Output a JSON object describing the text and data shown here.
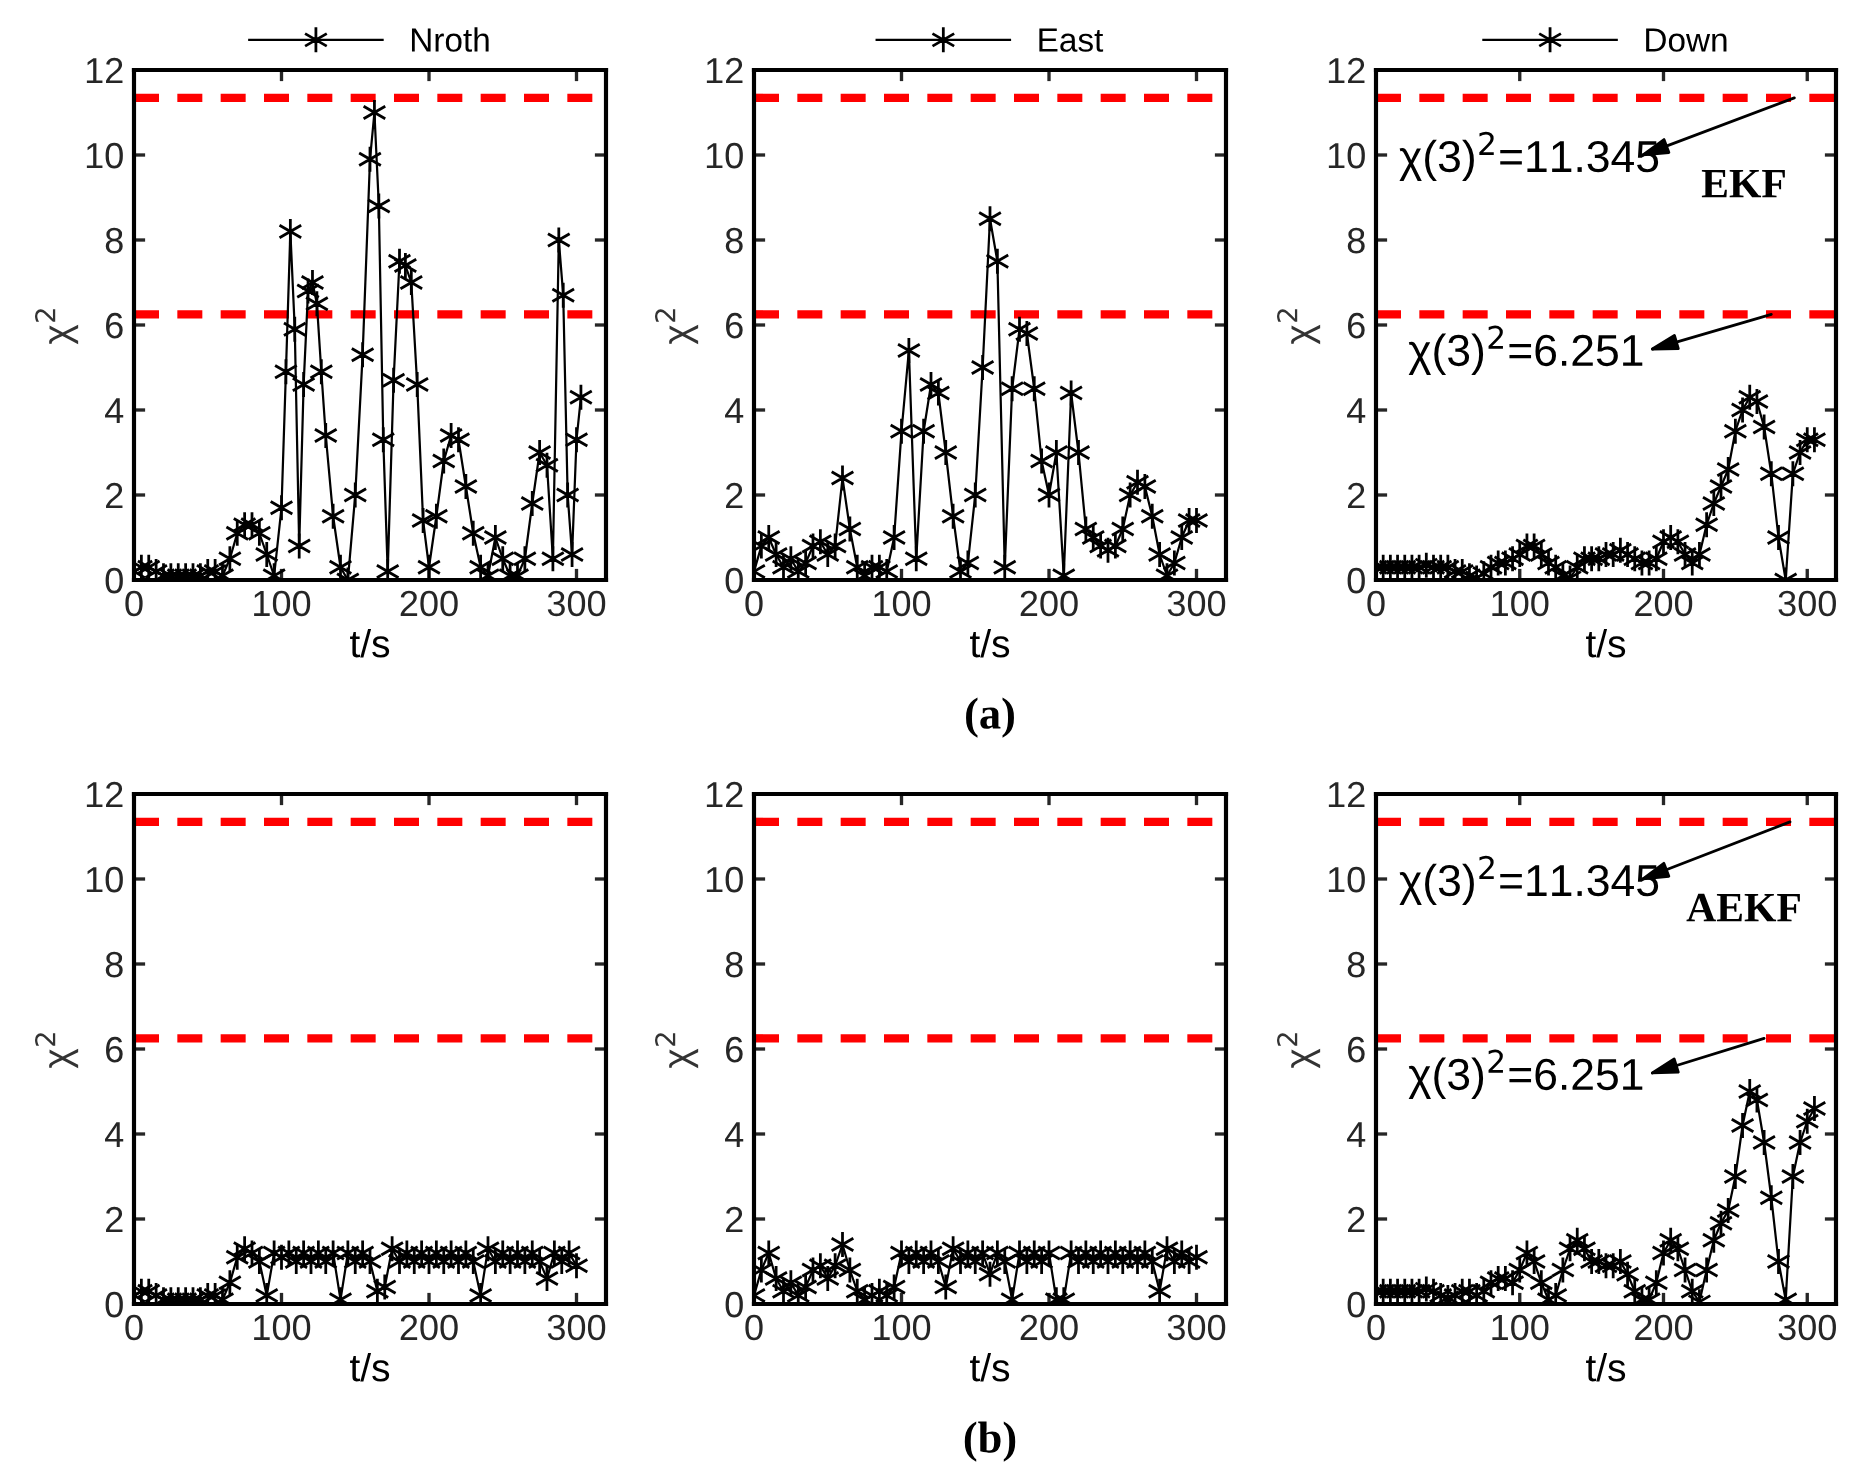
{
  "chart_data": [
    {
      "type": "line",
      "xlabel": "t/s",
      "ylabel": "χ$^{2}$",
      "xlim": [
        0,
        320
      ],
      "xticks": [
        0,
        100,
        200,
        300
      ],
      "ylim": [
        0,
        12
      ],
      "yticks": [
        0,
        2,
        4,
        6,
        8,
        10,
        12
      ],
      "marker": "cross",
      "line_style": "solid",
      "legend": "top",
      "ref_lines": [
        {
          "axis": "y",
          "value": 11.345,
          "color": "#ff0000",
          "line_style": "dashed"
        },
        {
          "axis": "y",
          "value": 6.251,
          "color": "#ff0000",
          "line_style": "dashed"
        }
      ],
      "series": [
        {
          "name": "Nroth",
          "color": "#000000",
          "x": [
            0,
            5,
            10,
            15,
            20,
            25,
            30,
            35,
            40,
            45,
            50,
            55,
            60,
            65,
            70,
            75,
            80,
            85,
            90,
            95,
            100,
            103,
            106,
            109,
            112,
            115,
            118,
            121,
            124,
            127,
            130,
            135,
            140,
            145,
            150,
            155,
            160,
            163,
            166,
            169,
            172,
            176,
            180,
            184,
            188,
            192,
            196,
            200,
            205,
            210,
            215,
            220,
            225,
            230,
            235,
            240,
            245,
            250,
            255,
            260,
            265,
            270,
            275,
            280,
            284,
            288,
            291,
            294,
            297,
            300,
            303
          ],
          "values": [
            0.2,
            0.3,
            0.3,
            0.2,
            0.1,
            0.1,
            0.1,
            0.1,
            0.1,
            0.1,
            0.2,
            0.2,
            0.1,
            0.5,
            1.1,
            1.3,
            1.3,
            1.1,
            0.6,
            0.1,
            1.7,
            4.9,
            8.2,
            5.9,
            0.8,
            4.6,
            6.8,
            7.0,
            6.5,
            4.9,
            3.4,
            1.5,
            0.3,
            0,
            2.0,
            5.3,
            9.9,
            11.0,
            8.8,
            3.3,
            0.2,
            4.7,
            7.5,
            7.4,
            7.0,
            4.6,
            1.4,
            0.3,
            1.5,
            2.8,
            3.4,
            3.3,
            2.2,
            1.1,
            0.3,
            0.1,
            1.0,
            0.5,
            0.1,
            0.1,
            0.5,
            1.8,
            3.0,
            2.7,
            0.5,
            8.0,
            6.7,
            2.0,
            0.6,
            3.3,
            4.3
          ]
        }
      ]
    },
    {
      "type": "line",
      "xlabel": "t/s",
      "ylabel": "χ$^{2}$",
      "xlim": [
        0,
        320
      ],
      "xticks": [
        0,
        100,
        200,
        300
      ],
      "ylim": [
        0,
        12
      ],
      "yticks": [
        0,
        2,
        4,
        6,
        8,
        10,
        12
      ],
      "marker": "cross",
      "line_style": "solid",
      "legend": "top",
      "ref_lines": [
        {
          "axis": "y",
          "value": 11.345,
          "color": "#ff0000",
          "line_style": "dashed"
        },
        {
          "axis": "y",
          "value": 6.251,
          "color": "#ff0000",
          "line_style": "dashed"
        }
      ],
      "annotations": [
        "(a)"
      ],
      "series": [
        {
          "name": "East",
          "color": "#000000",
          "x": [
            0,
            5,
            10,
            15,
            20,
            25,
            30,
            35,
            40,
            45,
            50,
            55,
            60,
            65,
            70,
            75,
            80,
            85,
            90,
            95,
            100,
            105,
            110,
            115,
            120,
            125,
            130,
            135,
            140,
            145,
            150,
            155,
            160,
            165,
            170,
            175,
            180,
            185,
            190,
            195,
            200,
            205,
            210,
            215,
            220,
            225,
            230,
            235,
            240,
            245,
            250,
            255,
            260,
            265,
            270,
            275,
            280,
            285,
            290,
            295,
            300
          ],
          "values": [
            0.2,
            0.8,
            1.0,
            0.6,
            0.3,
            0.5,
            0.2,
            0.4,
            0.8,
            0.9,
            0.6,
            0.8,
            2.4,
            1.2,
            0.3,
            0.1,
            0.3,
            0.3,
            0.2,
            1.0,
            3.5,
            5.4,
            0.5,
            3.5,
            4.6,
            4.4,
            3.0,
            1.5,
            0.2,
            0.4,
            2.0,
            5.0,
            8.5,
            7.5,
            0.3,
            4.5,
            5.9,
            5.8,
            4.5,
            2.8,
            2.0,
            3.0,
            0.1,
            4.4,
            3.0,
            1.2,
            1.0,
            0.8,
            0.7,
            0.8,
            1.2,
            2.0,
            2.3,
            2.2,
            1.5,
            0.6,
            0.1,
            0.4,
            1.0,
            1.4,
            1.4
          ]
        }
      ]
    },
    {
      "type": "line",
      "xlabel": "t/s",
      "ylabel": "χ$^{2}$",
      "xlim": [
        0,
        320
      ],
      "xticks": [
        0,
        100,
        200,
        300
      ],
      "ylim": [
        0,
        12
      ],
      "yticks": [
        0,
        2,
        4,
        6,
        8,
        10,
        12
      ],
      "marker": "cross",
      "line_style": "solid",
      "legend": "top",
      "ref_lines": [
        {
          "axis": "y",
          "value": 11.345,
          "color": "#ff0000",
          "line_style": "dashed"
        },
        {
          "axis": "y",
          "value": 6.251,
          "color": "#ff0000",
          "line_style": "dashed"
        }
      ],
      "annotations": [
        {
          "text": "χ(3)$^{2}$=11.345",
          "x": 291,
          "y": 11.345
        },
        {
          "text": "χ(3)$^{2}$=6.251",
          "x": 275,
          "y": 6.251
        },
        "EKF"
      ],
      "series": [
        {
          "name": "Down",
          "color": "#000000",
          "x": [
            0,
            5,
            10,
            15,
            20,
            25,
            30,
            35,
            40,
            45,
            50,
            55,
            60,
            65,
            70,
            75,
            80,
            85,
            90,
            95,
            100,
            105,
            110,
            115,
            120,
            125,
            130,
            135,
            140,
            145,
            150,
            155,
            160,
            165,
            170,
            175,
            180,
            185,
            190,
            195,
            200,
            205,
            210,
            215,
            220,
            225,
            230,
            235,
            240,
            245,
            250,
            255,
            260,
            265,
            270,
            275,
            280,
            285,
            290,
            295,
            300,
            305
          ],
          "values": [
            0.3,
            0.3,
            0.3,
            0.3,
            0.3,
            0.3,
            0.3,
            0.35,
            0.3,
            0.3,
            0.3,
            0.2,
            0.2,
            0.1,
            0.05,
            0.15,
            0.3,
            0.4,
            0.4,
            0.5,
            0.6,
            0.8,
            0.8,
            0.6,
            0.4,
            0.3,
            0.1,
            0.05,
            0.3,
            0.5,
            0.5,
            0.5,
            0.6,
            0.6,
            0.7,
            0.6,
            0.5,
            0.4,
            0.4,
            0.5,
            0.9,
            1.0,
            0.9,
            0.6,
            0.4,
            0.6,
            1.3,
            1.8,
            2.2,
            2.6,
            3.5,
            4.0,
            4.3,
            4.2,
            3.6,
            2.5,
            1.0,
            0.0,
            2.5,
            3.0,
            3.3,
            3.3
          ]
        }
      ]
    },
    {
      "type": "line",
      "xlabel": "t/s",
      "ylabel": "χ$^{2}$",
      "xlim": [
        0,
        320
      ],
      "xticks": [
        0,
        100,
        200,
        300
      ],
      "ylim": [
        0,
        12
      ],
      "yticks": [
        0,
        2,
        4,
        6,
        8,
        10,
        12
      ],
      "marker": "cross",
      "line_style": "solid",
      "ref_lines": [
        {
          "axis": "y",
          "value": 11.345,
          "color": "#ff0000",
          "line_style": "dashed"
        },
        {
          "axis": "y",
          "value": 6.251,
          "color": "#ff0000",
          "line_style": "dashed"
        }
      ],
      "series": [
        {
          "color": "#000000",
          "x": [
            0,
            5,
            10,
            15,
            20,
            25,
            30,
            35,
            40,
            45,
            50,
            55,
            60,
            65,
            70,
            75,
            80,
            85,
            90,
            95,
            100,
            105,
            110,
            115,
            120,
            125,
            130,
            135,
            140,
            145,
            150,
            155,
            160,
            165,
            170,
            175,
            180,
            185,
            190,
            195,
            200,
            205,
            210,
            215,
            220,
            225,
            230,
            235,
            240,
            245,
            250,
            255,
            260,
            265,
            270,
            275,
            280,
            285,
            290,
            295,
            300
          ],
          "values": [
            0.2,
            0.3,
            0.3,
            0.2,
            0.1,
            0.1,
            0.1,
            0.1,
            0.1,
            0.1,
            0.2,
            0.2,
            0.1,
            0.5,
            1.1,
            1.3,
            1.2,
            1.0,
            0.2,
            1.2,
            1.1,
            1.2,
            1.0,
            1.2,
            1.0,
            1.2,
            1.0,
            1.2,
            0.1,
            1.2,
            1.0,
            1.2,
            1.0,
            0.3,
            0.4,
            1.3,
            1.0,
            1.2,
            1.0,
            1.2,
            1.0,
            1.2,
            1.0,
            1.2,
            1.0,
            1.2,
            1.0,
            0.2,
            1.3,
            1.0,
            1.2,
            1.0,
            1.2,
            1.0,
            1.2,
            1.0,
            0.6,
            1.2,
            1.0,
            1.2,
            0.9
          ]
        }
      ]
    },
    {
      "type": "line",
      "xlabel": "t/s",
      "ylabel": "χ$^{2}$",
      "xlim": [
        0,
        320
      ],
      "xticks": [
        0,
        100,
        200,
        300
      ],
      "ylim": [
        0,
        12
      ],
      "yticks": [
        0,
        2,
        4,
        6,
        8,
        10,
        12
      ],
      "marker": "cross",
      "line_style": "solid",
      "ref_lines": [
        {
          "axis": "y",
          "value": 11.345,
          "color": "#ff0000",
          "line_style": "dashed"
        },
        {
          "axis": "y",
          "value": 6.251,
          "color": "#ff0000",
          "line_style": "dashed"
        }
      ],
      "annotations": [
        "(b)"
      ],
      "series": [
        {
          "color": "#000000",
          "x": [
            0,
            5,
            10,
            15,
            20,
            25,
            30,
            35,
            40,
            45,
            50,
            55,
            60,
            65,
            70,
            75,
            80,
            85,
            90,
            95,
            100,
            105,
            110,
            115,
            120,
            125,
            130,
            135,
            140,
            145,
            150,
            155,
            160,
            165,
            170,
            175,
            180,
            185,
            190,
            195,
            200,
            205,
            210,
            215,
            220,
            225,
            230,
            235,
            240,
            245,
            250,
            255,
            260,
            265,
            270,
            275,
            280,
            285,
            290,
            295,
            300
          ],
          "values": [
            0.2,
            0.8,
            1.2,
            0.6,
            0.3,
            0.5,
            0.2,
            0.4,
            0.8,
            0.9,
            0.6,
            0.9,
            1.4,
            0.8,
            0.3,
            0.1,
            0.2,
            0.3,
            0.2,
            0.4,
            1.2,
            1.0,
            1.2,
            1.0,
            1.2,
            1.0,
            0.4,
            1.3,
            1.0,
            1.2,
            1.0,
            1.2,
            0.7,
            1.2,
            1.0,
            0.1,
            1.2,
            1.0,
            1.2,
            1.0,
            1.2,
            0.1,
            0.1,
            1.2,
            1.0,
            1.2,
            1.0,
            1.2,
            1.0,
            1.2,
            1.0,
            1.2,
            1.0,
            1.2,
            1.0,
            0.3,
            1.3,
            1.0,
            1.2,
            1.0,
            1.1
          ]
        }
      ]
    },
    {
      "type": "line",
      "xlabel": "t/s",
      "ylabel": "χ$^{2}$",
      "xlim": [
        0,
        320
      ],
      "xticks": [
        0,
        100,
        200,
        300
      ],
      "ylim": [
        0,
        12
      ],
      "yticks": [
        0,
        2,
        4,
        6,
        8,
        10,
        12
      ],
      "marker": "cross",
      "line_style": "solid",
      "ref_lines": [
        {
          "axis": "y",
          "value": 11.345,
          "color": "#ff0000",
          "line_style": "dashed"
        },
        {
          "axis": "y",
          "value": 6.251,
          "color": "#ff0000",
          "line_style": "dashed"
        }
      ],
      "annotations": [
        {
          "text": "χ(3)$^{2}$=11.345",
          "x": 288,
          "y": 11.345
        },
        {
          "text": "χ(3)$^{2}$=6.251",
          "x": 270,
          "y": 6.251
        },
        "AEKF"
      ],
      "series": [
        {
          "color": "#000000",
          "x": [
            0,
            5,
            10,
            15,
            20,
            25,
            30,
            35,
            40,
            45,
            50,
            55,
            60,
            65,
            70,
            75,
            80,
            85,
            90,
            95,
            100,
            105,
            110,
            115,
            120,
            125,
            130,
            135,
            140,
            145,
            150,
            155,
            160,
            165,
            170,
            175,
            180,
            185,
            190,
            195,
            200,
            205,
            210,
            215,
            220,
            225,
            230,
            235,
            240,
            245,
            250,
            255,
            260,
            265,
            270,
            275,
            280,
            285,
            290,
            295,
            300,
            305
          ],
          "values": [
            0.3,
            0.3,
            0.3,
            0.3,
            0.3,
            0.3,
            0.3,
            0.35,
            0.3,
            0.2,
            0.15,
            0.2,
            0.3,
            0.3,
            0.2,
            0.3,
            0.5,
            0.6,
            0.6,
            0.5,
            0.8,
            1.2,
            1.0,
            0.5,
            0.1,
            0.2,
            0.8,
            1.3,
            1.5,
            1.3,
            1.0,
            1.0,
            0.9,
            0.9,
            1.0,
            0.7,
            0.3,
            0.1,
            0.1,
            0.5,
            1.2,
            1.5,
            1.3,
            0.8,
            0.3,
            0.05,
            0.8,
            1.5,
            1.9,
            2.2,
            3.0,
            4.2,
            5.0,
            4.8,
            3.8,
            2.5,
            1.0,
            0.1,
            3.0,
            3.8,
            4.3,
            4.6
          ]
        }
      ]
    }
  ]
}
